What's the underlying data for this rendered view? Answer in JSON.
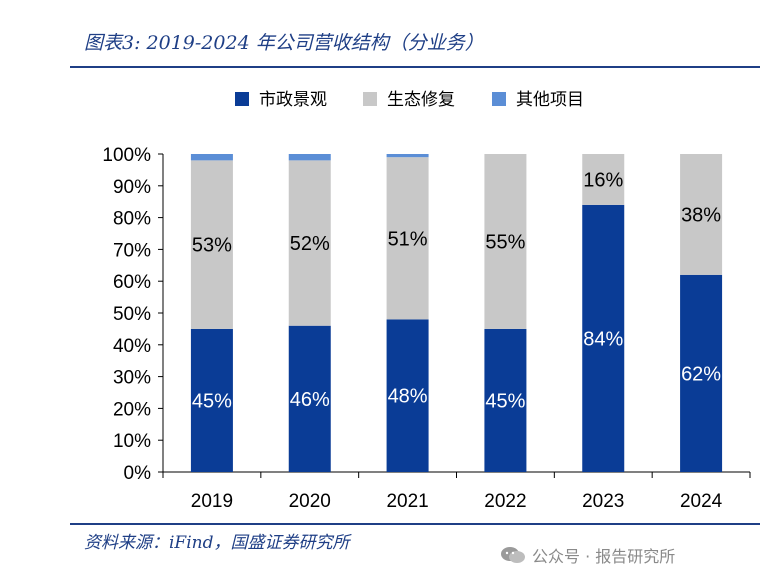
{
  "header": {
    "title": "图表3:  2019-2024 年公司营收结构（分业务）"
  },
  "footer": {
    "source": "资料来源：iFind，国盛证券研究所",
    "watermark": "公众号 · 报告研究所"
  },
  "colors": {
    "series_1": "#0a3c96",
    "series_2": "#c8c8c8",
    "series_3": "#5b8ed6",
    "accent": "#1f3f86"
  },
  "chart_data": {
    "type": "bar",
    "stacked": true,
    "categories": [
      "2019",
      "2020",
      "2021",
      "2022",
      "2023",
      "2024"
    ],
    "series": [
      {
        "name": "市政景观",
        "values": [
          45,
          46,
          48,
          45,
          84,
          62
        ],
        "labels": [
          "45%",
          "46%",
          "48%",
          "45%",
          "84%",
          "62%"
        ],
        "label_color": "#ffffff"
      },
      {
        "name": "生态修复",
        "values": [
          53,
          52,
          51,
          55,
          16,
          38
        ],
        "labels": [
          "53%",
          "52%",
          "51%",
          "55%",
          "16%",
          "38%"
        ],
        "label_color": "#000000"
      },
      {
        "name": "其他项目",
        "values": [
          2,
          2,
          1,
          0,
          0,
          0
        ],
        "labels": [],
        "label_color": "#000000"
      }
    ],
    "y_ticks": [
      "0%",
      "10%",
      "20%",
      "30%",
      "40%",
      "50%",
      "60%",
      "70%",
      "80%",
      "90%",
      "100%"
    ],
    "ylim": [
      0,
      100
    ],
    "xlabel": "",
    "ylabel": "",
    "legend_position": "top"
  }
}
